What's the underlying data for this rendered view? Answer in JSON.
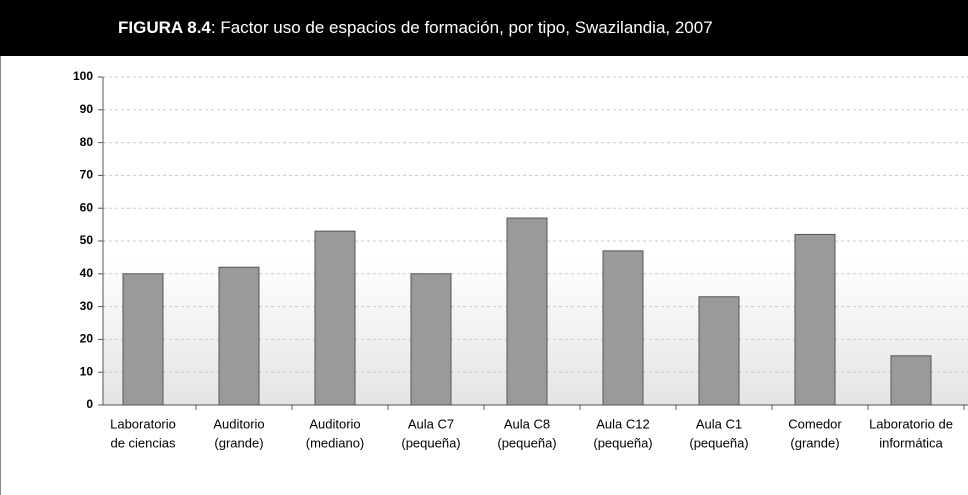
{
  "chart_data": {
    "type": "bar",
    "figure_label": "FIGURA 8.4",
    "title": ": Factor uso de espacios de formación, por tipo, Swazilandia, 2007",
    "categories": [
      [
        "Laboratorio",
        "de ciencias"
      ],
      [
        "Auditorio",
        "(grande)"
      ],
      [
        "Auditorio",
        "(mediano)"
      ],
      [
        "Aula C7",
        "(pequeña)"
      ],
      [
        "Aula C8",
        "(pequeña)"
      ],
      [
        "Aula C12",
        "(pequeña)"
      ],
      [
        "Aula C1",
        "(pequeña)"
      ],
      [
        "Comedor",
        "(grande)"
      ],
      [
        "Laboratorio de",
        "informática"
      ]
    ],
    "values": [
      40,
      42,
      53,
      40,
      57,
      47,
      33,
      52,
      15
    ],
    "color": "#9a9a9a",
    "ylim": [
      0,
      100
    ],
    "yticks": [
      0,
      10,
      20,
      30,
      40,
      50,
      60,
      70,
      80,
      90,
      100
    ],
    "grid": true
  }
}
